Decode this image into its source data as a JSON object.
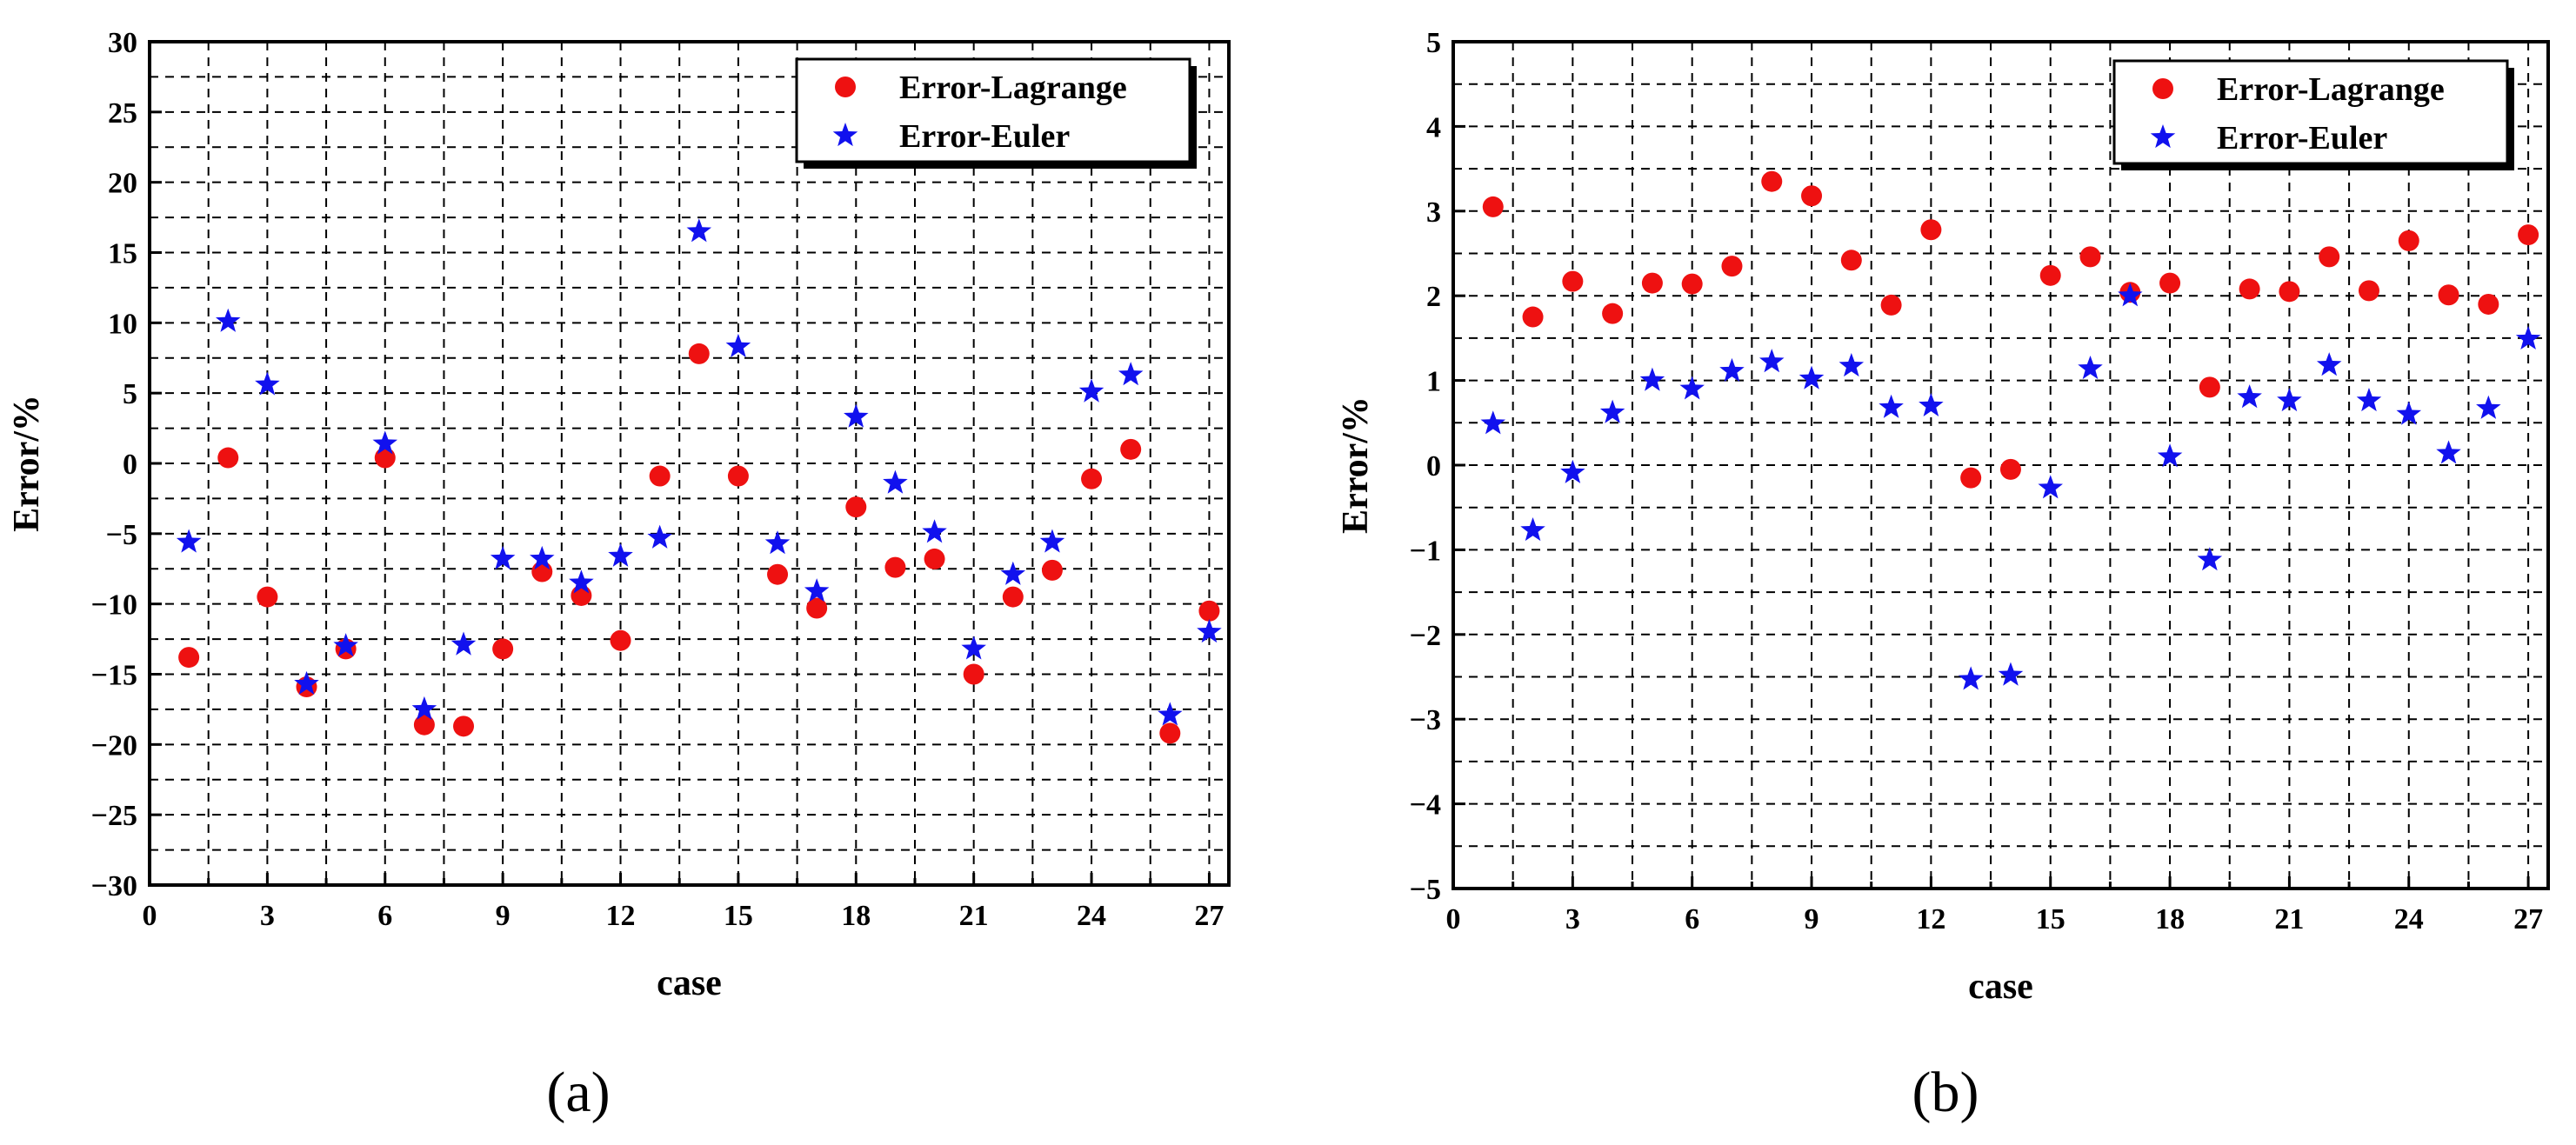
{
  "figure": {
    "panel_labels": [
      "(a)",
      "(b)"
    ]
  },
  "chart_data": [
    {
      "type": "scatter",
      "panel": "(a)",
      "title": "",
      "xlabel": "case",
      "ylabel": "Error/%",
      "xlim": [
        0,
        27.5
      ],
      "ylim": [
        -30,
        30
      ],
      "xticks": [
        0,
        3,
        6,
        9,
        12,
        15,
        18,
        21,
        24,
        27
      ],
      "yticks": [
        30,
        25,
        20,
        15,
        10,
        5,
        0,
        -5,
        -10,
        -15,
        -20,
        -25,
        -30
      ],
      "grid": true,
      "grid_style": "dashed",
      "legend_position": "top-right",
      "series": [
        {
          "name": "Error-Lagrange",
          "marker": "circle",
          "color": "#ee1111",
          "x": [
            1,
            2,
            3,
            4,
            5,
            6,
            7,
            8,
            9,
            10,
            11,
            12,
            13,
            14,
            15,
            16,
            17,
            18,
            19,
            20,
            21,
            22,
            23,
            24,
            25,
            26,
            27
          ],
          "y": [
            -13.8,
            0.4,
            -9.5,
            -15.9,
            -13.2,
            0.4,
            -18.6,
            -18.7,
            -13.2,
            -7.7,
            -9.4,
            -12.6,
            -0.9,
            7.8,
            -0.9,
            -7.9,
            -10.3,
            -3.1,
            -7.4,
            -6.8,
            -15.0,
            -9.5,
            -7.6,
            -1.1,
            1.0,
            -19.2,
            -10.5
          ]
        },
        {
          "name": "Error-Euler",
          "marker": "star",
          "color": "#1111ee",
          "x": [
            1,
            2,
            3,
            4,
            5,
            6,
            7,
            8,
            9,
            10,
            11,
            12,
            13,
            14,
            15,
            16,
            17,
            18,
            19,
            20,
            21,
            22,
            23,
            24,
            25,
            26,
            27
          ],
          "y": [
            -5.6,
            10.1,
            5.6,
            -15.7,
            -13.0,
            1.4,
            -17.5,
            -12.9,
            -6.8,
            -6.8,
            -8.5,
            -6.6,
            -5.3,
            16.5,
            8.3,
            -5.7,
            -9.1,
            3.3,
            -1.4,
            -4.9,
            -13.2,
            -7.9,
            -5.6,
            5.1,
            6.3,
            -17.9,
            -12.0
          ]
        }
      ]
    },
    {
      "type": "scatter",
      "panel": "(b)",
      "title": "",
      "xlabel": "case",
      "ylabel": "Error/%",
      "xlim": [
        0,
        27.5
      ],
      "ylim": [
        -5,
        5
      ],
      "xticks": [
        0,
        3,
        6,
        9,
        12,
        15,
        18,
        21,
        24,
        27
      ],
      "yticks": [
        5,
        4,
        3,
        2,
        1,
        0,
        -1,
        -2,
        -3,
        -4,
        -5
      ],
      "grid": true,
      "grid_style": "dashed",
      "legend_position": "top-right",
      "series": [
        {
          "name": "Error-Lagrange",
          "marker": "circle",
          "color": "#ee1111",
          "x": [
            1,
            2,
            3,
            4,
            5,
            6,
            7,
            8,
            9,
            10,
            11,
            12,
            13,
            14,
            15,
            16,
            17,
            18,
            19,
            20,
            21,
            22,
            23,
            24,
            25,
            26,
            27
          ],
          "y": [
            3.05,
            1.75,
            2.17,
            1.79,
            2.15,
            2.14,
            2.35,
            3.35,
            3.18,
            2.42,
            1.89,
            2.78,
            -0.15,
            -0.05,
            2.24,
            2.46,
            2.04,
            2.15,
            0.92,
            2.08,
            2.05,
            2.46,
            2.06,
            2.65,
            2.01,
            1.9,
            2.72
          ]
        },
        {
          "name": "Error-Euler",
          "marker": "star",
          "color": "#1111ee",
          "x": [
            1,
            2,
            3,
            4,
            5,
            6,
            7,
            8,
            9,
            10,
            11,
            12,
            13,
            14,
            15,
            16,
            17,
            18,
            19,
            20,
            21,
            22,
            23,
            24,
            25,
            26,
            27
          ],
          "y": [
            0.49,
            -0.77,
            -0.09,
            0.62,
            1.0,
            0.9,
            1.11,
            1.22,
            1.02,
            1.17,
            0.68,
            0.7,
            -2.53,
            -2.48,
            -0.27,
            1.14,
            2.0,
            0.1,
            -1.12,
            0.8,
            0.76,
            1.18,
            0.76,
            0.6,
            0.14,
            0.67,
            1.49
          ]
        }
      ]
    }
  ]
}
